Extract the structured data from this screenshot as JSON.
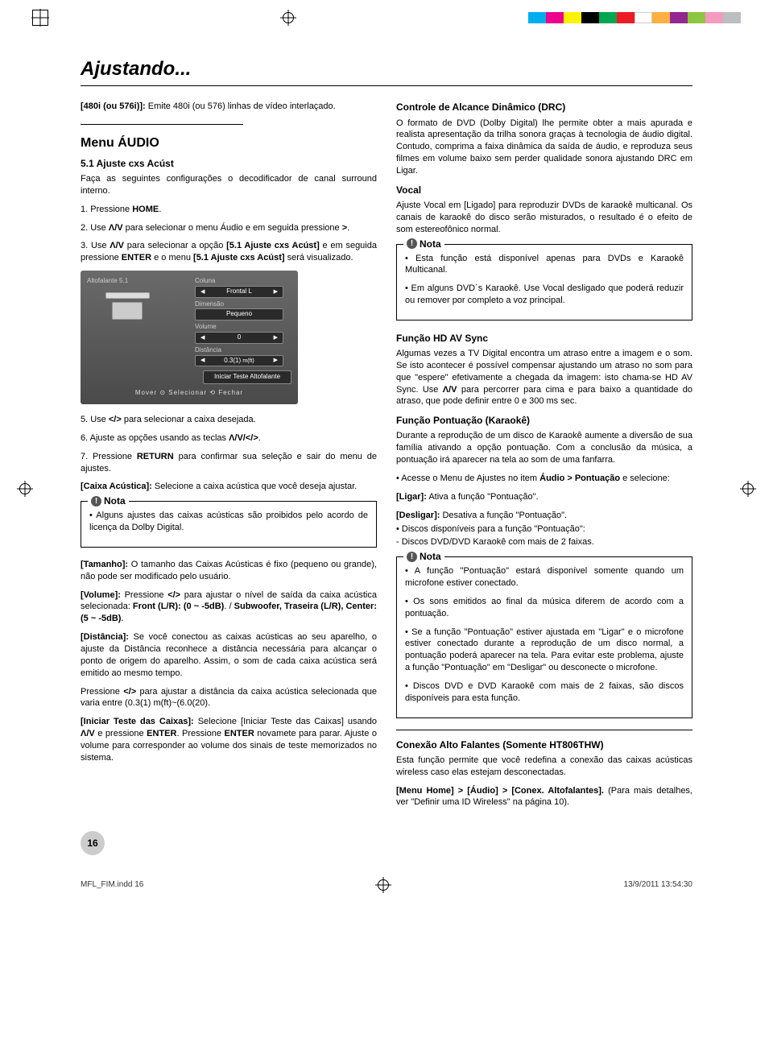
{
  "colorbar": [
    "#00aeef",
    "#ec008c",
    "#fff200",
    "#000000",
    "#00a651",
    "#ed1c24",
    "#ffffff",
    "#fbb040",
    "#92278f",
    "#8dc63f",
    "#f49ac1",
    "#bcbec0"
  ],
  "title": "Ajustando...",
  "left": {
    "p1_label": "[480i (ou 576i)]:",
    "p1_text": " Emite 480i (ou 576) linhas de vídeo interlaçado.",
    "menu_heading": "Menu ÁUDIO",
    "sub1": "5.1 Ajuste cxs Acúst",
    "sub1_text": "Faça as seguintes configurações o decodificador de canal surround interno.",
    "step1": "1. Pressione HOME.",
    "step2_a": "2. Use ",
    "step2_sym": "Λ/V",
    "step2_b": " para selecionar o menu Áudio e em seguida pressione >.",
    "step3_a": "3. Use ",
    "step3_sym": "Λ/V",
    "step3_b": " para selecionar a opção [5.1 Ajuste cxs Acúst] e em seguida pressione ENTER e o menu [5.1 Ajuste cxs Acúst] será visualizado.",
    "osd": {
      "title_left": "Altofalante 5.1",
      "col_label": "Coluna",
      "col_value": "Frontal L",
      "dim_label": "Dimensão",
      "dim_value": "Pequeno",
      "vol_label": "Volume",
      "vol_value": "0",
      "dist_label": "Distância",
      "dist_value": "0.3(1)",
      "dist_unit": "m(ft)",
      "test_btn": "Iniciar Teste Altofalante",
      "footer": "Mover   ⊙ Selecionar  ⟲ Fechar"
    },
    "step5": "5. Use </> para selecionar a caixa desejada.",
    "step6": "6. Ajuste as opções usando as teclas Λ/V/</>.",
    "step7": "7. Pressione RETURN para confirmar sua seleção e sair do menu de ajustes.",
    "caixa_label": "[Caixa Acústica]:",
    "caixa_text": " Selecione a caixa acústica que você deseja ajustar.",
    "nota_label": "Nota",
    "nota1": "• Alguns ajustes das caixas acústicas são proibidos pelo acordo de licença da Dolby Digital.",
    "tamanho_label": "[Tamanho]:",
    "tamanho_text": " O tamanho das Caixas Acústicas é fixo (pequeno ou grande), não pode ser modificado pelo usuário.",
    "volume_label": "[Volume]:",
    "volume_text": " Pressione </> para ajustar o nível de saída da caixa acústica selecionada: Front (L/R): (0 ~ -5dB). / Subwoofer, Traseira (L/R), Center: (5 ~ -5dB).",
    "dist_label2": "[Distância]:",
    "dist_text": " Se você conectou as caixas acústicas ao seu aparelho, o ajuste da Distância reconhece a distância necessária para alcançar o ponto de origem do aparelho. Assim, o som de cada caixa acústica será emitido ao mesmo tempo.",
    "press_dist": "Pressione </> para ajustar a distância da caixa acústica selecionada que varia entre (0.3(1) m(ft)~(6.0(20).",
    "iniciar_label": "[Iniciar Teste das Caixas]:",
    "iniciar_text": " Selecione [Iniciar Teste das Caixas] usando Λ/V e pressione ENTER. Pressione ENTER novamete para parar. Ajuste o volume para corresponder ao volume dos sinais de teste memorizados no sistema."
  },
  "right": {
    "drc_h": "Controle de Alcance Dinâmico (DRC)",
    "drc_p": "O formato de DVD (Dolby Digital) lhe permite obter a mais apurada e realista apresentação da trilha sonora graças à tecnologia de áudio digital. Contudo, comprima a faixa dinâmica da saída de áudio, e reproduza seus filmes em volume baixo sem perder qualidade sonora ajustando DRC em Ligar.",
    "vocal_h": "Vocal",
    "vocal_p": "Ajuste Vocal em [Ligado] para reproduzir DVDs de karaokê multicanal. Os canais de karaokê do disco serão misturados, o resultado é o efeito de som estereofônico normal.",
    "nota2_a": "• Esta função está disponível apenas para DVDs e Karaokê Multicanal.",
    "nota2_b": "• Em alguns DVD´s Karaokê. Use Vocal desligado que poderá reduzir ou remover por completo a voz principal.",
    "hd_h": "Função HD AV Sync",
    "hd_p": "Algumas vezes a TV Digital encontra um atraso entre a imagem e o som. Se isto acontecer é possível compensar ajustando um atraso no som para que \"espere\" efetivamente a chegada da imagem: isto chama-se HD AV Sync. Use  Λ/V para percorrer para cima e para baixo a quantidade do atraso, que pode definir entre 0 e 300 ms sec.",
    "pk_h": "Função Pontuação (Karaokê)",
    "pk_p1": "Durante a reprodução de um disco de Karaokê aumente a diversão de sua família ativando a opção pontuação. Com a conclusão da música, a pontuação irá aparecer na tela ao som de uma fanfarra.",
    "pk_p2": "• Acesse o Menu de Ajustes no item Áudio > Pontuação e selecione:",
    "pk_ligar_l": "[Ligar]:",
    "pk_ligar_t": " Ativa a função \"Pontuação\".",
    "pk_desl_l": "[Desligar]:",
    "pk_desl_t": " Desativa a função \"Pontuação\".",
    "pk_disc1": "• Discos disponíveis para a função \"Pontuação\":",
    "pk_disc2": "- Discos DVD/DVD Karaokê com mais de 2 faixas.",
    "nota3_a": "• A função \"Pontuação\" estará disponível somente quando um microfone estiver conectado.",
    "nota3_b": "• Os sons emitidos ao final da música diferem de acordo com a pontuação.",
    "nota3_c": "• Se a função \"Pontuação\" estiver ajustada em \"Ligar\" e o microfone estiver conectado durante a reprodução de um disco normal, a pontuação poderá aparecer na tela. Para evitar este problema, ajuste a função \"Pontuação\" em \"Desligar\" ou desconecte o microfone.",
    "nota3_d": "• Discos DVD e DVD Karaokê com mais de 2 faixas, são discos disponíveis para esta função.",
    "conn_h": "Conexão Alto Falantes (Somente HT806THW)",
    "conn_p1": "Esta função permite que você redefina a conexão das caixas acústicas wireless caso elas estejam desconectadas.",
    "conn_p2_a": "[Menu Home] > [Áudio] > [Conex. Altofalantes].",
    "conn_p2_b": " (Para mais detalhes, ver \"Definir uma ID Wireless\" na página 10)."
  },
  "page_number": "16",
  "footer_file": "MFL_FIM.indd   16",
  "footer_time": "13/9/2011   13:54:30"
}
